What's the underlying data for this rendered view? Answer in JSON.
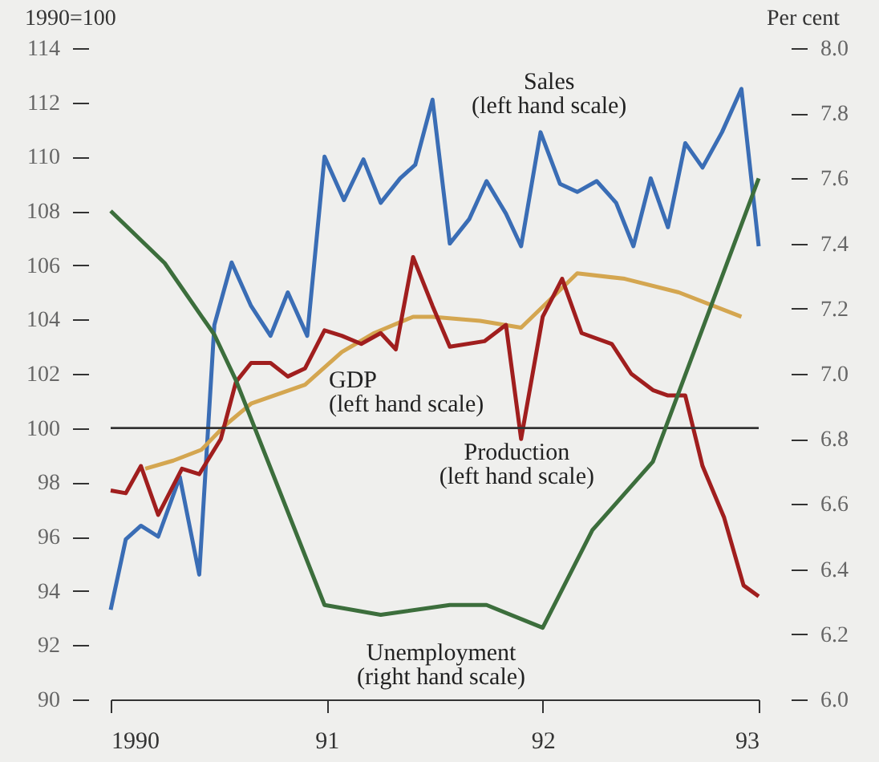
{
  "chart_data": {
    "type": "line",
    "ylabel": "1990=100",
    "y2label": "Per cent",
    "xlim": [
      1990,
      1993
    ],
    "xticks": [
      {
        "value": 1990,
        "label": "1990"
      },
      {
        "value": 1991,
        "label": "91"
      },
      {
        "value": 1992,
        "label": "92"
      },
      {
        "value": 1993,
        "label": "93"
      }
    ],
    "ylim": [
      90,
      114
    ],
    "yticks": [
      90,
      92,
      94,
      96,
      98,
      100,
      102,
      104,
      106,
      108,
      110,
      112,
      114
    ],
    "y2lim": [
      6,
      8
    ],
    "y2ticks": [
      {
        "value": 6,
        "label": "6.0"
      },
      6.2,
      6.4,
      6.6,
      6.8,
      {
        "value": 7,
        "label": "7.0"
      },
      7.2,
      7.4,
      7.6,
      7.8,
      {
        "value": 8,
        "label": "8.0"
      }
    ],
    "grid": false,
    "ref_lines": [
      {
        "axis": "y",
        "value": 100,
        "color": "#333333"
      }
    ],
    "series": [
      {
        "name": "Sales (left hand scale)",
        "color": "#3a6db5",
        "x": [
          1990.0,
          1990.07,
          1990.14,
          1990.22,
          1990.32,
          1990.41,
          1990.48,
          1990.56,
          1990.65,
          1990.74,
          1990.82,
          1990.91,
          1990.99,
          1991.08,
          1991.17,
          1991.25,
          1991.34,
          1991.41,
          1991.49,
          1991.57,
          1991.66,
          1991.74,
          1991.83,
          1991.9,
          1991.99,
          1992.08,
          1992.16,
          1992.25,
          1992.34,
          1992.42,
          1992.5,
          1992.58,
          1992.66,
          1992.74,
          1992.83,
          1992.92,
          1993.0
        ],
        "values": [
          93.3,
          95.9,
          96.4,
          96.0,
          98.2,
          94.6,
          103.8,
          106.1,
          104.5,
          103.4,
          105.0,
          103.4,
          110.0,
          108.4,
          109.9,
          108.3,
          109.2,
          109.7,
          112.1,
          106.8,
          107.7,
          109.1,
          107.9,
          106.7,
          110.9,
          109.0,
          108.7,
          109.1,
          108.3,
          106.7,
          109.2,
          107.4,
          110.5,
          109.6,
          110.9,
          112.5,
          106.7
        ]
      },
      {
        "name": "GDP (left hand scale)",
        "color": "#d4a650",
        "x": [
          1990.16,
          1990.29,
          1990.42,
          1990.53,
          1990.65,
          1990.9,
          1991.07,
          1991.22,
          1991.4,
          1991.49,
          1991.71,
          1991.9,
          1992.16,
          1992.38,
          1992.63,
          1992.92
        ],
        "values": [
          98.5,
          98.8,
          99.2,
          100.1,
          100.9,
          101.6,
          102.8,
          103.5,
          104.1,
          104.1,
          103.95,
          103.7,
          105.7,
          105.5,
          105.0,
          104.1
        ]
      },
      {
        "name": "Production (left hand scale)",
        "color": "#a01e1e",
        "x": [
          1990.0,
          1990.07,
          1990.14,
          1990.22,
          1990.33,
          1990.41,
          1990.51,
          1990.58,
          1990.65,
          1990.74,
          1990.82,
          1990.9,
          1990.99,
          1991.07,
          1991.16,
          1991.25,
          1991.32,
          1991.4,
          1991.49,
          1991.57,
          1991.73,
          1991.83,
          1991.9,
          1992.0,
          1992.09,
          1992.18,
          1992.32,
          1992.41,
          1992.51,
          1992.58,
          1992.66,
          1992.74,
          1992.84,
          1992.93,
          1993.0
        ],
        "values": [
          97.7,
          97.6,
          98.6,
          96.8,
          98.5,
          98.3,
          99.6,
          101.7,
          102.4,
          102.4,
          101.9,
          102.2,
          103.6,
          103.4,
          103.1,
          103.5,
          102.9,
          106.3,
          104.5,
          103.0,
          103.2,
          103.8,
          99.6,
          104.1,
          105.5,
          103.5,
          103.1,
          102.0,
          101.4,
          101.2,
          101.2,
          98.6,
          96.7,
          94.2,
          93.8
        ]
      },
      {
        "name": "Unemployment (right hand scale)",
        "color": "#3c6e3c",
        "axis": "y2",
        "x": [
          1990.0,
          1990.25,
          1990.48,
          1990.58,
          1990.99,
          1991.25,
          1991.57,
          1991.74,
          1992.0,
          1992.23,
          1992.51,
          1993.0
        ],
        "values": [
          7.5,
          7.34,
          7.12,
          6.98,
          6.29,
          6.26,
          6.29,
          6.29,
          6.22,
          6.52,
          6.73,
          7.6
        ]
      }
    ]
  }
}
